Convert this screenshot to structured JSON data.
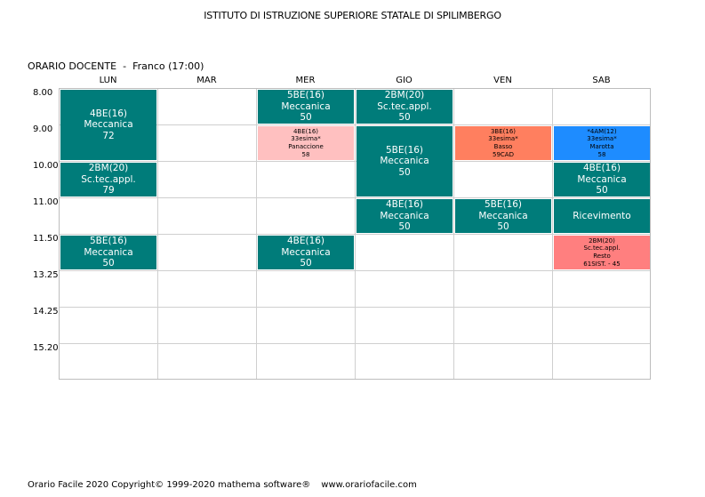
{
  "header": {
    "school": "ISTITUTO DI ISTRUZIONE SUPERIORE STATALE DI SPILIMBERGO",
    "section": "ORARIO DOCENTE",
    "separator": "-",
    "teacher": "Franco (17:00)"
  },
  "days": [
    "LUN",
    "MAR",
    "MER",
    "GIO",
    "VEN",
    "SAB"
  ],
  "times": [
    "8.00",
    "9.00",
    "10.00",
    "11.00",
    "11.50",
    "13.25",
    "14.25",
    "15.20"
  ],
  "colors": {
    "teal": "#007C7A",
    "pink": "#FFC0C0",
    "coral": "#FF7F5F",
    "blue": "#1E8CFF",
    "salmon": "#FF7F7F"
  },
  "lessons": [
    {
      "day": 0,
      "start": 0,
      "span": 2,
      "color": "teal",
      "size": "big",
      "lines": [
        "4BE(16)",
        "Meccanica",
        "72"
      ]
    },
    {
      "day": 0,
      "start": 2,
      "span": 1,
      "color": "teal",
      "size": "big",
      "lines": [
        "2BM(20)",
        "Sc.tec.appl.",
        "79"
      ]
    },
    {
      "day": 0,
      "start": 4,
      "span": 1,
      "color": "teal",
      "size": "big",
      "lines": [
        "5BE(16)",
        "Meccanica",
        "50"
      ]
    },
    {
      "day": 2,
      "start": 0,
      "span": 1,
      "color": "teal",
      "size": "big",
      "lines": [
        "5BE(16)",
        "Meccanica",
        "50"
      ]
    },
    {
      "day": 2,
      "start": 1,
      "span": 1,
      "color": "pink",
      "size": "small",
      "lines": [
        "4BE(16)",
        "33esima*",
        "Panaccione",
        "58"
      ]
    },
    {
      "day": 2,
      "start": 4,
      "span": 1,
      "color": "teal",
      "size": "big",
      "lines": [
        "4BE(16)",
        "Meccanica",
        "50"
      ]
    },
    {
      "day": 3,
      "start": 0,
      "span": 1,
      "color": "teal",
      "size": "big",
      "lines": [
        "2BM(20)",
        "Sc.tec.appl.",
        "50"
      ]
    },
    {
      "day": 3,
      "start": 1,
      "span": 2,
      "color": "teal",
      "size": "big",
      "lines": [
        "5BE(16)",
        "Meccanica",
        "50"
      ]
    },
    {
      "day": 3,
      "start": 3,
      "span": 1,
      "color": "teal",
      "size": "big",
      "lines": [
        "4BE(16)",
        "Meccanica",
        "50"
      ]
    },
    {
      "day": 4,
      "start": 1,
      "span": 1,
      "color": "coral",
      "size": "small",
      "lines": [
        "3BE(16)",
        "33esima*",
        "Basso",
        "59CAD"
      ]
    },
    {
      "day": 4,
      "start": 3,
      "span": 1,
      "color": "teal",
      "size": "big",
      "lines": [
        "5BE(16)",
        "Meccanica",
        "50"
      ]
    },
    {
      "day": 5,
      "start": 1,
      "span": 1,
      "color": "blue",
      "size": "small",
      "lines": [
        "*4AM(12)",
        "33esima*",
        "Marotta",
        "58"
      ]
    },
    {
      "day": 5,
      "start": 2,
      "span": 1,
      "color": "teal",
      "size": "big",
      "lines": [
        "4BE(16)",
        "Meccanica",
        "50"
      ]
    },
    {
      "day": 5,
      "start": 3,
      "span": 1,
      "color": "teal",
      "size": "big",
      "lines": [
        "Ricevimento"
      ]
    },
    {
      "day": 5,
      "start": 4,
      "span": 1,
      "color": "salmon",
      "size": "small",
      "lines": [
        "2BM(20)",
        "Sc.tec.appl.",
        "Resto",
        "61SIST. - 45"
      ]
    }
  ],
  "footer": {
    "copyright": "Orario Facile 2020  Copyright© 1999-2020 mathema software®",
    "url": "www.orariofacile.com"
  }
}
